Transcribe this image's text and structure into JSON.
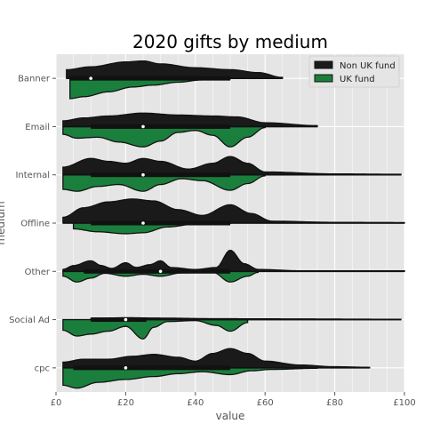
{
  "chart_data": {
    "type": "violin",
    "title": "2020 gifts by medium",
    "xlabel": "value",
    "ylabel": "medium",
    "xlim": [
      0,
      100
    ],
    "xticks": [
      0,
      20,
      40,
      60,
      80,
      100
    ],
    "xtick_labels": [
      "£0",
      "£20",
      "£40",
      "£60",
      "£80",
      "£100"
    ],
    "grid": true,
    "legend_position": "top-right",
    "categories": [
      "Banner",
      "Email",
      "Internal",
      "Offline",
      "Other",
      "Social Ad",
      "cpc"
    ],
    "series": [
      {
        "name": "Non UK fund",
        "color": "#1a1a1a",
        "side": "upper",
        "violins": [
          {
            "category": "Banner",
            "min": 3,
            "max": 65,
            "q1": 4,
            "q3": 50,
            "median": 10,
            "density": [
              [
                3,
                0.45
              ],
              [
                10,
                0.6
              ],
              [
                20,
                0.85
              ],
              [
                25,
                0.9
              ],
              [
                30,
                0.75
              ],
              [
                40,
                0.55
              ],
              [
                50,
                0.45
              ],
              [
                58,
                0.3
              ],
              [
                65,
                0.05
              ]
            ]
          },
          {
            "category": "Email",
            "min": 2,
            "max": 75,
            "q1": 10,
            "q3": 50,
            "median": 25,
            "density": [
              [
                2,
                0.3
              ],
              [
                8,
                0.45
              ],
              [
                15,
                0.55
              ],
              [
                25,
                0.7
              ],
              [
                35,
                0.6
              ],
              [
                45,
                0.55
              ],
              [
                52,
                0.5
              ],
              [
                60,
                0.2
              ],
              [
                75,
                0.05
              ]
            ]
          },
          {
            "category": "Internal",
            "min": 2,
            "max": 99,
            "q1": 10,
            "q3": 50,
            "median": 25,
            "density": [
              [
                2,
                0.4
              ],
              [
                10,
                0.85
              ],
              [
                15,
                0.7
              ],
              [
                20,
                0.6
              ],
              [
                25,
                0.85
              ],
              [
                30,
                0.7
              ],
              [
                38,
                0.3
              ],
              [
                45,
                0.6
              ],
              [
                50,
                0.95
              ],
              [
                55,
                0.6
              ],
              [
                60,
                0.15
              ],
              [
                80,
                0.05
              ],
              [
                99,
                0.03
              ]
            ]
          },
          {
            "category": "Offline",
            "min": 2,
            "max": 100,
            "q1": 10,
            "q3": 50,
            "median": 25,
            "density": [
              [
                2,
                0.3
              ],
              [
                8,
                0.8
              ],
              [
                15,
                1.1
              ],
              [
                22,
                1.25
              ],
              [
                28,
                1.15
              ],
              [
                35,
                0.7
              ],
              [
                42,
                0.4
              ],
              [
                50,
                0.95
              ],
              [
                56,
                0.5
              ],
              [
                62,
                0.1
              ],
              [
                80,
                0.04
              ],
              [
                100,
                0.03
              ]
            ]
          },
          {
            "category": "Other",
            "min": 2,
            "max": 100,
            "q1": 8,
            "q3": 50,
            "median": 30,
            "density": [
              [
                2,
                0.1
              ],
              [
                5,
                0.3
              ],
              [
                10,
                0.55
              ],
              [
                13,
                0.3
              ],
              [
                16,
                0.15
              ],
              [
                20,
                0.45
              ],
              [
                23,
                0.2
              ],
              [
                27,
                0.35
              ],
              [
                30,
                0.55
              ],
              [
                33,
                0.2
              ],
              [
                40,
                0.1
              ],
              [
                46,
                0.2
              ],
              [
                50,
                1.1
              ],
              [
                54,
                0.4
              ],
              [
                58,
                0.1
              ],
              [
                70,
                0.03
              ],
              [
                100,
                0.03
              ]
            ]
          },
          {
            "category": "Social Ad",
            "min": 10,
            "max": 99,
            "q1": 10,
            "q3": 26,
            "median": 20,
            "density": [
              [
                10,
                0.05
              ],
              [
                20,
                0.1
              ],
              [
                30,
                0.08
              ],
              [
                45,
                0.05
              ],
              [
                60,
                0.04
              ],
              [
                99,
                0.02
              ]
            ]
          },
          {
            "category": "cpc",
            "min": 2,
            "max": 90,
            "q1": 5,
            "q3": 50,
            "median": 20,
            "density": [
              [
                2,
                0.3
              ],
              [
                8,
                0.45
              ],
              [
                15,
                0.45
              ],
              [
                22,
                0.6
              ],
              [
                28,
                0.7
              ],
              [
                35,
                0.55
              ],
              [
                40,
                0.35
              ],
              [
                45,
                0.75
              ],
              [
                50,
                1.0
              ],
              [
                55,
                0.75
              ],
              [
                60,
                0.35
              ],
              [
                70,
                0.15
              ],
              [
                80,
                0.06
              ],
              [
                90,
                0.03
              ]
            ]
          }
        ]
      },
      {
        "name": "UK fund",
        "color": "#1a7f3c",
        "side": "lower",
        "violins": [
          {
            "category": "Banner",
            "min": 4,
            "max": 50,
            "q1": 4,
            "q3": 26,
            "median": 10,
            "density": [
              [
                4,
                1.05
              ],
              [
                8,
                0.95
              ],
              [
                15,
                0.7
              ],
              [
                22,
                0.45
              ],
              [
                28,
                0.35
              ],
              [
                35,
                0.2
              ],
              [
                42,
                0.08
              ],
              [
                50,
                0.03
              ]
            ]
          },
          {
            "category": "Email",
            "min": 2,
            "max": 60,
            "q1": 10,
            "q3": 50,
            "median": 25,
            "density": [
              [
                2,
                0.4
              ],
              [
                6,
                0.6
              ],
              [
                12,
                0.55
              ],
              [
                18,
                0.8
              ],
              [
                25,
                1.05
              ],
              [
                30,
                0.75
              ],
              [
                35,
                0.3
              ],
              [
                40,
                0.2
              ],
              [
                45,
                0.45
              ],
              [
                50,
                1.05
              ],
              [
                55,
                0.55
              ],
              [
                60,
                0.05
              ]
            ]
          },
          {
            "category": "Internal",
            "min": 2,
            "max": 60,
            "q1": 10,
            "q3": 50,
            "median": 25,
            "density": [
              [
                2,
                0.75
              ],
              [
                6,
                0.85
              ],
              [
                12,
                0.6
              ],
              [
                18,
                0.5
              ],
              [
                25,
                0.85
              ],
              [
                30,
                0.5
              ],
              [
                36,
                0.2
              ],
              [
                42,
                0.3
              ],
              [
                50,
                0.8
              ],
              [
                55,
                0.45
              ],
              [
                60,
                0.05
              ]
            ]
          },
          {
            "category": "Offline",
            "min": 5,
            "max": 50,
            "q1": 10,
            "q3": 50,
            "median": 25,
            "density": [
              [
                5,
                0.3
              ],
              [
                12,
                0.45
              ],
              [
                20,
                0.55
              ],
              [
                25,
                0.5
              ],
              [
                32,
                0.2
              ],
              [
                40,
                0.05
              ],
              [
                50,
                0.02
              ]
            ]
          },
          {
            "category": "Other",
            "min": 2,
            "max": 58,
            "q1": 8,
            "q3": 50,
            "median": 30,
            "density": [
              [
                2,
                0.25
              ],
              [
                6,
                0.55
              ],
              [
                10,
                0.35
              ],
              [
                14,
                0.1
              ],
              [
                20,
                0.25
              ],
              [
                25,
                0.15
              ],
              [
                30,
                0.25
              ],
              [
                36,
                0.08
              ],
              [
                45,
                0.05
              ],
              [
                50,
                0.55
              ],
              [
                55,
                0.25
              ],
              [
                58,
                0.05
              ]
            ]
          },
          {
            "category": "Social Ad",
            "min": 2,
            "max": 55,
            "q1": 10,
            "q3": 26,
            "median": 20,
            "density": [
              [
                2,
                0.55
              ],
              [
                6,
                0.85
              ],
              [
                10,
                0.75
              ],
              [
                15,
                0.6
              ],
              [
                20,
                0.35
              ],
              [
                25,
                1.0
              ],
              [
                28,
                0.4
              ],
              [
                32,
                0.1
              ],
              [
                40,
                0.05
              ],
              [
                46,
                0.3
              ],
              [
                50,
                0.6
              ],
              [
                55,
                0.15
              ]
            ]
          },
          {
            "category": "cpc",
            "min": 2,
            "max": 75,
            "q1": 5,
            "q3": 50,
            "median": 20,
            "density": [
              [
                2,
                0.9
              ],
              [
                6,
                1.05
              ],
              [
                12,
                0.75
              ],
              [
                20,
                0.6
              ],
              [
                28,
                0.45
              ],
              [
                35,
                0.3
              ],
              [
                42,
                0.2
              ],
              [
                50,
                0.35
              ],
              [
                56,
                0.15
              ],
              [
                62,
                0.08
              ],
              [
                75,
                0.02
              ]
            ]
          }
        ]
      }
    ]
  }
}
